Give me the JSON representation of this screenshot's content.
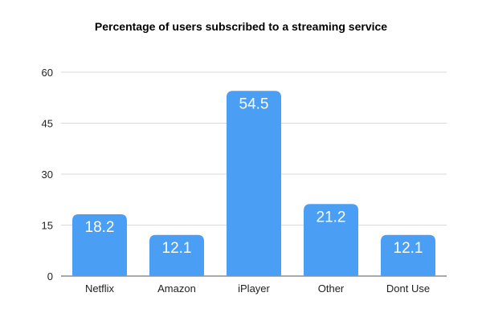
{
  "chart_data": {
    "type": "bar",
    "title": "Percentage of users subscribed to a streaming service",
    "xlabel": "",
    "ylabel": "",
    "categories": [
      "Netflix",
      "Amazon",
      "iPlayer",
      "Other",
      "Dont Use"
    ],
    "values": [
      18.2,
      12.1,
      54.5,
      21.2,
      12.1
    ],
    "data_labels": [
      "18.2",
      "12.1",
      "54.5",
      "21.2",
      "12.1"
    ],
    "ylim": [
      0,
      60
    ],
    "yticks": [
      0,
      15,
      30,
      45,
      60
    ],
    "ytick_labels": [
      "0",
      "15",
      "30",
      "45",
      "60"
    ],
    "grid": true,
    "legend": "none",
    "colors": {
      "bar": "#4A9FF5",
      "grid": "#d9d9d9",
      "axis": "#555555"
    }
  }
}
